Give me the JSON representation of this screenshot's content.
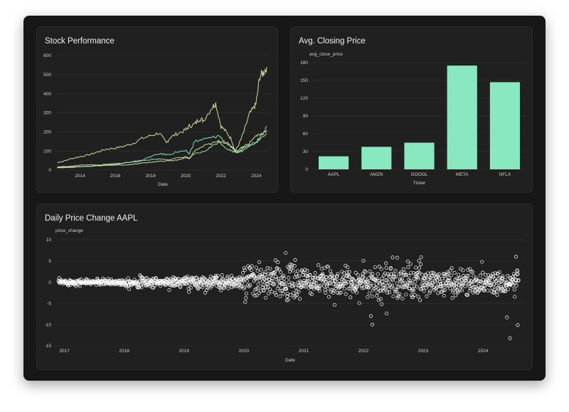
{
  "panels": {
    "stock": {
      "title": "Stock Performance"
    },
    "avg": {
      "title": "Avg. Closing Price"
    },
    "daily": {
      "title": "Daily Price Change AAPL"
    }
  },
  "colors": {
    "line_a": "#e0e3a8",
    "line_b": "#8ae8c1",
    "line_c": "#a9e6a4",
    "bar": "#8ae8c1",
    "point_stroke": "#ffffff"
  },
  "chart_data": [
    {
      "type": "line",
      "title": "Stock Performance",
      "xlabel": "Date",
      "ylabel": "",
      "ylim": [
        0,
        600
      ],
      "yticks": [
        0,
        100,
        200,
        300,
        400,
        500,
        600
      ],
      "xlim": [
        2012.6,
        2024.8
      ],
      "xticks": [
        "2014",
        "2016",
        "2018",
        "2020",
        "2022",
        "2024"
      ],
      "grid": true,
      "series": [
        {
          "color": "#e0e3a8",
          "x": [
            2012.7,
            2013.0,
            2013.5,
            2014.0,
            2014.5,
            2015.0,
            2015.5,
            2016.0,
            2016.5,
            2017.0,
            2017.5,
            2018.0,
            2018.5,
            2018.9,
            2019.1,
            2019.5,
            2020.0,
            2020.2,
            2020.5,
            2020.8,
            2021.0,
            2021.5,
            2021.7,
            2022.0,
            2022.3,
            2022.6,
            2022.8,
            2023.0,
            2023.3,
            2023.6,
            2023.9,
            2024.0,
            2024.2,
            2024.4,
            2024.6
          ],
          "y": [
            40,
            45,
            60,
            70,
            80,
            95,
            110,
            115,
            125,
            140,
            165,
            180,
            195,
            140,
            170,
            190,
            210,
            230,
            240,
            270,
            260,
            330,
            350,
            230,
            200,
            160,
            100,
            130,
            200,
            290,
            330,
            350,
            490,
            510,
            540
          ]
        },
        {
          "color": "#8ae8c1",
          "x": [
            2012.7,
            2013.5,
            2014.0,
            2014.5,
            2015.0,
            2015.5,
            2016.0,
            2016.5,
            2017.0,
            2017.5,
            2018.0,
            2018.5,
            2019.0,
            2019.5,
            2020.0,
            2020.2,
            2020.5,
            2021.0,
            2021.5,
            2021.9,
            2022.3,
            2022.6,
            2022.9,
            2023.2,
            2023.6,
            2024.0,
            2024.3,
            2024.6
          ],
          "y": [
            12,
            14,
            18,
            20,
            25,
            28,
            30,
            35,
            45,
            52,
            70,
            85,
            80,
            95,
            100,
            85,
            150,
            160,
            170,
            180,
            140,
            120,
            90,
            100,
            130,
            150,
            185,
            230
          ]
        },
        {
          "color": "#a9e6a4",
          "x": [
            2012.7,
            2013.5,
            2014.0,
            2014.5,
            2015.0,
            2015.5,
            2016.0,
            2016.5,
            2017.0,
            2017.5,
            2018.0,
            2018.5,
            2019.0,
            2019.5,
            2020.0,
            2020.2,
            2020.5,
            2021.0,
            2021.5,
            2021.9,
            2022.3,
            2022.6,
            2022.9,
            2023.2,
            2023.6,
            2024.0,
            2024.3,
            2024.6
          ],
          "y": [
            17,
            20,
            26,
            28,
            26,
            30,
            33,
            38,
            42,
            48,
            55,
            58,
            55,
            62,
            70,
            60,
            85,
            95,
            125,
            150,
            115,
            100,
            95,
            110,
            130,
            145,
            170,
            185
          ]
        },
        {
          "color": "#e0e3a8",
          "x": [
            2012.7,
            2013.5,
            2014.0,
            2014.5,
            2015.0,
            2015.5,
            2016.0,
            2016.5,
            2017.0,
            2017.5,
            2018.0,
            2018.5,
            2019.0,
            2019.5,
            2020.0,
            2020.2,
            2020.5,
            2021.0,
            2021.5,
            2021.9,
            2022.3,
            2022.6,
            2022.9,
            2023.2,
            2023.6,
            2024.0,
            2024.3,
            2024.6
          ],
          "y": [
            15,
            16,
            18,
            20,
            22,
            25,
            27,
            26,
            30,
            36,
            42,
            45,
            48,
            52,
            65,
            58,
            100,
            125,
            140,
            150,
            145,
            120,
            100,
            120,
            140,
            180,
            190,
            210
          ]
        }
      ]
    },
    {
      "type": "bar",
      "title": "Avg. Closing Price",
      "xlabel": "Ticker",
      "ylabel": "avg_close_price",
      "ylim": [
        0,
        180
      ],
      "yticks": [
        0,
        30,
        60,
        90,
        120,
        150,
        180
      ],
      "categories": [
        "AAPL",
        "AMZN",
        "GOOGL",
        "META",
        "NFLX"
      ],
      "values": [
        22,
        38,
        45,
        175,
        147
      ],
      "grid": true
    },
    {
      "type": "scatter",
      "title": "Daily Price Change AAPL",
      "xlabel": "Date",
      "ylabel": "price_change",
      "ylim": [
        -15,
        10
      ],
      "yticks": [
        -15,
        -10,
        -5,
        0,
        5,
        10
      ],
      "xlim": [
        2016.85,
        2024.7
      ],
      "xticks": [
        "2017",
        "2018",
        "2019",
        "2020",
        "2021",
        "2022",
        "2023",
        "2024"
      ],
      "grid": true,
      "spread_by_period": [
        {
          "from": 2016.9,
          "to": 2018.0,
          "sd": 0.35
        },
        {
          "from": 2018.0,
          "to": 2019.0,
          "sd": 0.6
        },
        {
          "from": 2019.0,
          "to": 2020.0,
          "sd": 0.8
        },
        {
          "from": 2020.0,
          "to": 2021.0,
          "sd": 2.2
        },
        {
          "from": 2021.0,
          "to": 2022.0,
          "sd": 1.6
        },
        {
          "from": 2022.0,
          "to": 2023.0,
          "sd": 2.3
        },
        {
          "from": 2023.0,
          "to": 2024.6,
          "sd": 1.5
        }
      ],
      "outliers": [
        {
          "x": 2024.45,
          "y": -13.2
        },
        {
          "x": 2024.58,
          "y": -10.1
        },
        {
          "x": 2022.15,
          "y": -10.0
        },
        {
          "x": 2024.4,
          "y": -8.3
        },
        {
          "x": 2020.7,
          "y": 6.9
        },
        {
          "x": 2024.55,
          "y": 6.0
        }
      ]
    }
  ]
}
